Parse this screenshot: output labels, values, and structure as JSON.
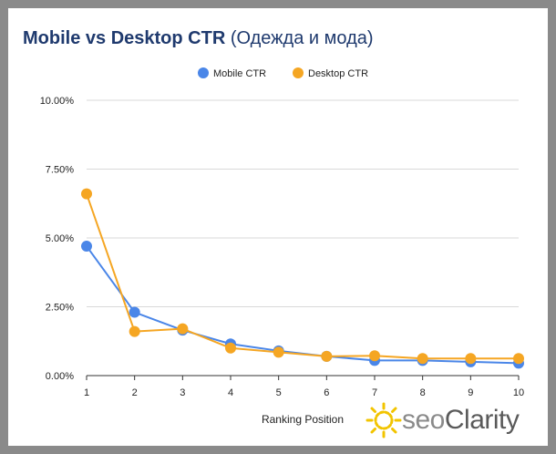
{
  "title": {
    "main": "Mobile vs Desktop CTR",
    "sub": "(Одежда и мода)"
  },
  "brand": {
    "prefix": "seo",
    "name": "Clarity"
  },
  "chart_data": {
    "type": "line",
    "x": [
      1,
      2,
      3,
      4,
      5,
      6,
      7,
      8,
      9,
      10
    ],
    "xlabel": "Ranking Position",
    "ylabel": "",
    "ylim": [
      0,
      10
    ],
    "yticks": [
      "0.00%",
      "2.50%",
      "5.00%",
      "7.50%",
      "10.00%"
    ],
    "ytick_values": [
      0,
      2.5,
      5,
      7.5,
      10
    ],
    "grid": true,
    "legend_position": "top-center",
    "series": [
      {
        "name": "Mobile CTR",
        "color": "#4a86e8",
        "values": [
          4.7,
          2.3,
          1.65,
          1.15,
          0.9,
          0.7,
          0.55,
          0.55,
          0.5,
          0.45
        ]
      },
      {
        "name": "Desktop CTR",
        "color": "#f5a623",
        "values": [
          6.6,
          1.6,
          1.7,
          1.0,
          0.85,
          0.7,
          0.72,
          0.62,
          0.62,
          0.62
        ]
      }
    ]
  }
}
